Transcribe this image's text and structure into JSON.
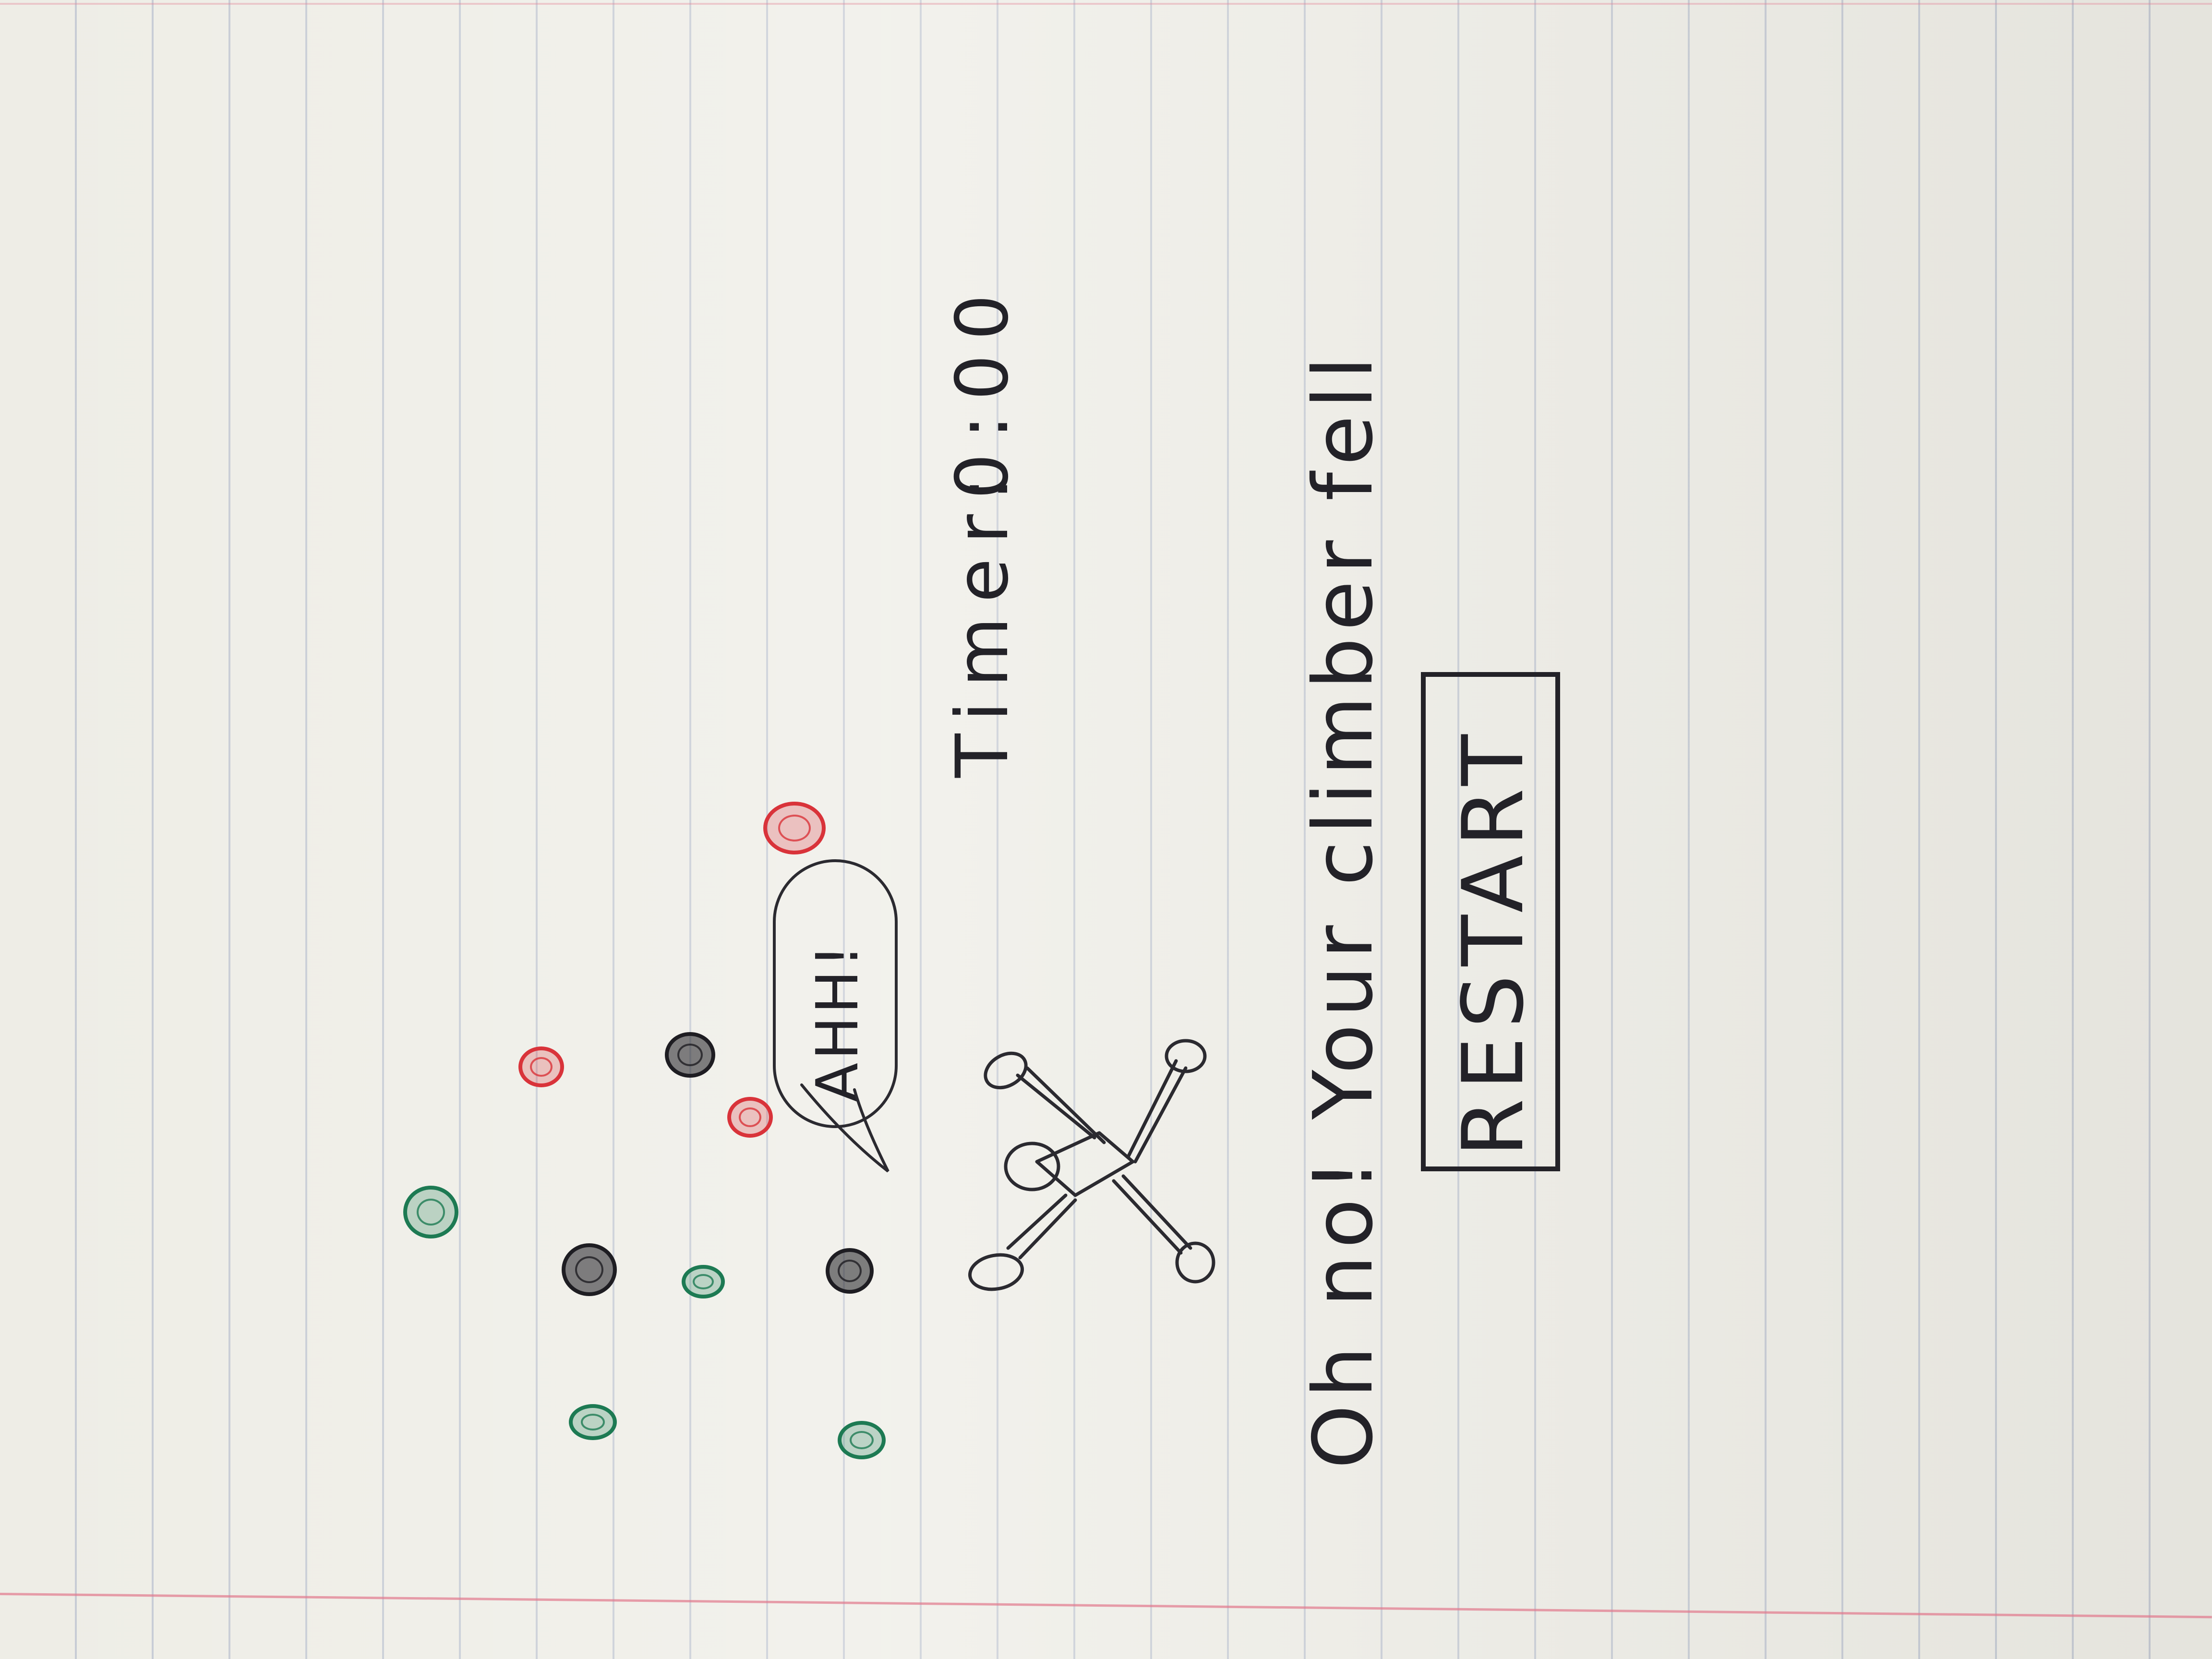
{
  "screen": "game-over",
  "hud": {
    "timer_label": "Timer:",
    "timer_value": "0:00"
  },
  "climber": {
    "speech": "AHH!",
    "state": "fallen"
  },
  "message": "Oh no! Your climber fell",
  "restart_button": {
    "label": "RESTART"
  },
  "holds": [
    {
      "name": "hold-red-1",
      "color": "#d9333a"
    },
    {
      "name": "hold-red-2",
      "color": "#d9333a"
    },
    {
      "name": "hold-red-3",
      "color": "#d9333a"
    },
    {
      "name": "hold-black-1",
      "color": "#1e1d22"
    },
    {
      "name": "hold-black-2",
      "color": "#1e1d22"
    },
    {
      "name": "hold-black-3",
      "color": "#1e1d22"
    },
    {
      "name": "hold-green-1",
      "color": "#1d7a53"
    },
    {
      "name": "hold-green-2",
      "color": "#1d7a53"
    },
    {
      "name": "hold-green-3",
      "color": "#1d7a53"
    },
    {
      "name": "hold-green-4",
      "color": "#1d7a53"
    }
  ]
}
